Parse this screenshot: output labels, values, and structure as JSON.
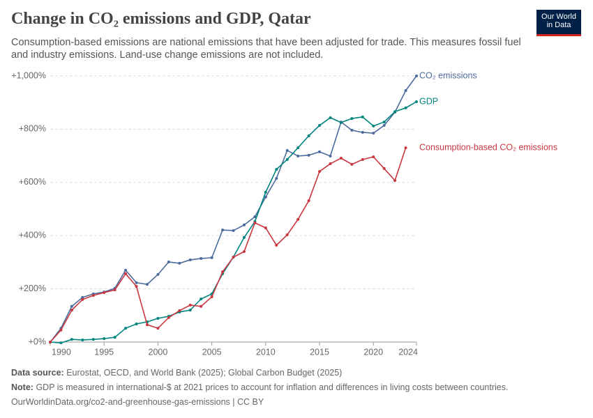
{
  "chart_data": {
    "type": "line",
    "title": "Change in CO₂ emissions and GDP, Qatar",
    "subtitle": "Consumption-based emissions are national emissions that have been adjusted for trade. This measures fossil fuel and industry emissions. Land-use change emissions are not included.",
    "logo": [
      "Our World",
      "in Data"
    ],
    "x": [
      1990,
      1991,
      1992,
      1993,
      1994,
      1995,
      1996,
      1997,
      1998,
      1999,
      2000,
      2001,
      2002,
      2003,
      2004,
      2005,
      2006,
      2007,
      2008,
      2009,
      2010,
      2011,
      2012,
      2013,
      2014,
      2015,
      2016,
      2017,
      2018,
      2019,
      2020,
      2021,
      2022,
      2023,
      2024
    ],
    "xlim": [
      1990,
      2024
    ],
    "xticks": [
      1990,
      1995,
      2000,
      2005,
      2010,
      2015,
      2020,
      2024
    ],
    "ylim": [
      0,
      1000
    ],
    "yticks": [
      {
        "value": 0,
        "label": "+0%"
      },
      {
        "value": 200,
        "label": "+200%"
      },
      {
        "value": 400,
        "label": "+400%"
      },
      {
        "value": 600,
        "label": "+600%"
      },
      {
        "value": 800,
        "label": "+800%"
      },
      {
        "value": 1000,
        "label": "+1,000%"
      }
    ],
    "grid": true,
    "series": [
      {
        "name": "CO₂ emissions",
        "color": "#4c6a9c",
        "values": [
          0,
          52,
          134,
          168,
          181,
          188,
          202,
          270,
          223,
          217,
          254,
          301,
          296,
          309,
          314,
          317,
          421,
          419,
          440,
          471,
          545,
          615,
          720,
          699,
          702,
          715,
          699,
          827,
          796,
          788,
          785,
          814,
          864,
          945,
          1000
        ]
      },
      {
        "name": "GDP",
        "color": "#00847e",
        "values": [
          0,
          -3,
          10,
          8,
          10,
          13,
          18,
          52,
          68,
          76,
          89,
          97,
          113,
          120,
          162,
          181,
          257,
          319,
          393,
          453,
          563,
          649,
          686,
          730,
          775,
          814,
          843,
          825,
          840,
          846,
          812,
          827,
          866,
          880,
          903
        ]
      },
      {
        "name": "Consumption-based CO₂ emissions",
        "color": "#c8363f",
        "values": [
          0,
          45,
          120,
          160,
          175,
          186,
          196,
          257,
          209,
          65,
          52,
          92,
          118,
          139,
          134,
          170,
          264,
          319,
          340,
          448,
          429,
          364,
          403,
          461,
          531,
          641,
          670,
          691,
          668,
          686,
          696,
          652,
          607,
          730,
          null
        ]
      }
    ],
    "source_label": "Data source:",
    "source": "Eurostat, OECD, and World Bank (2025); Global Carbon Budget (2025)",
    "note_label": "Note:",
    "note": "GDP is measured in international-$ at 2021 prices to account for inflation and differences in living costs between countries.",
    "url": "OurWorldinData.org/co2-and-greenhouse-gas-emissions | CC BY"
  }
}
